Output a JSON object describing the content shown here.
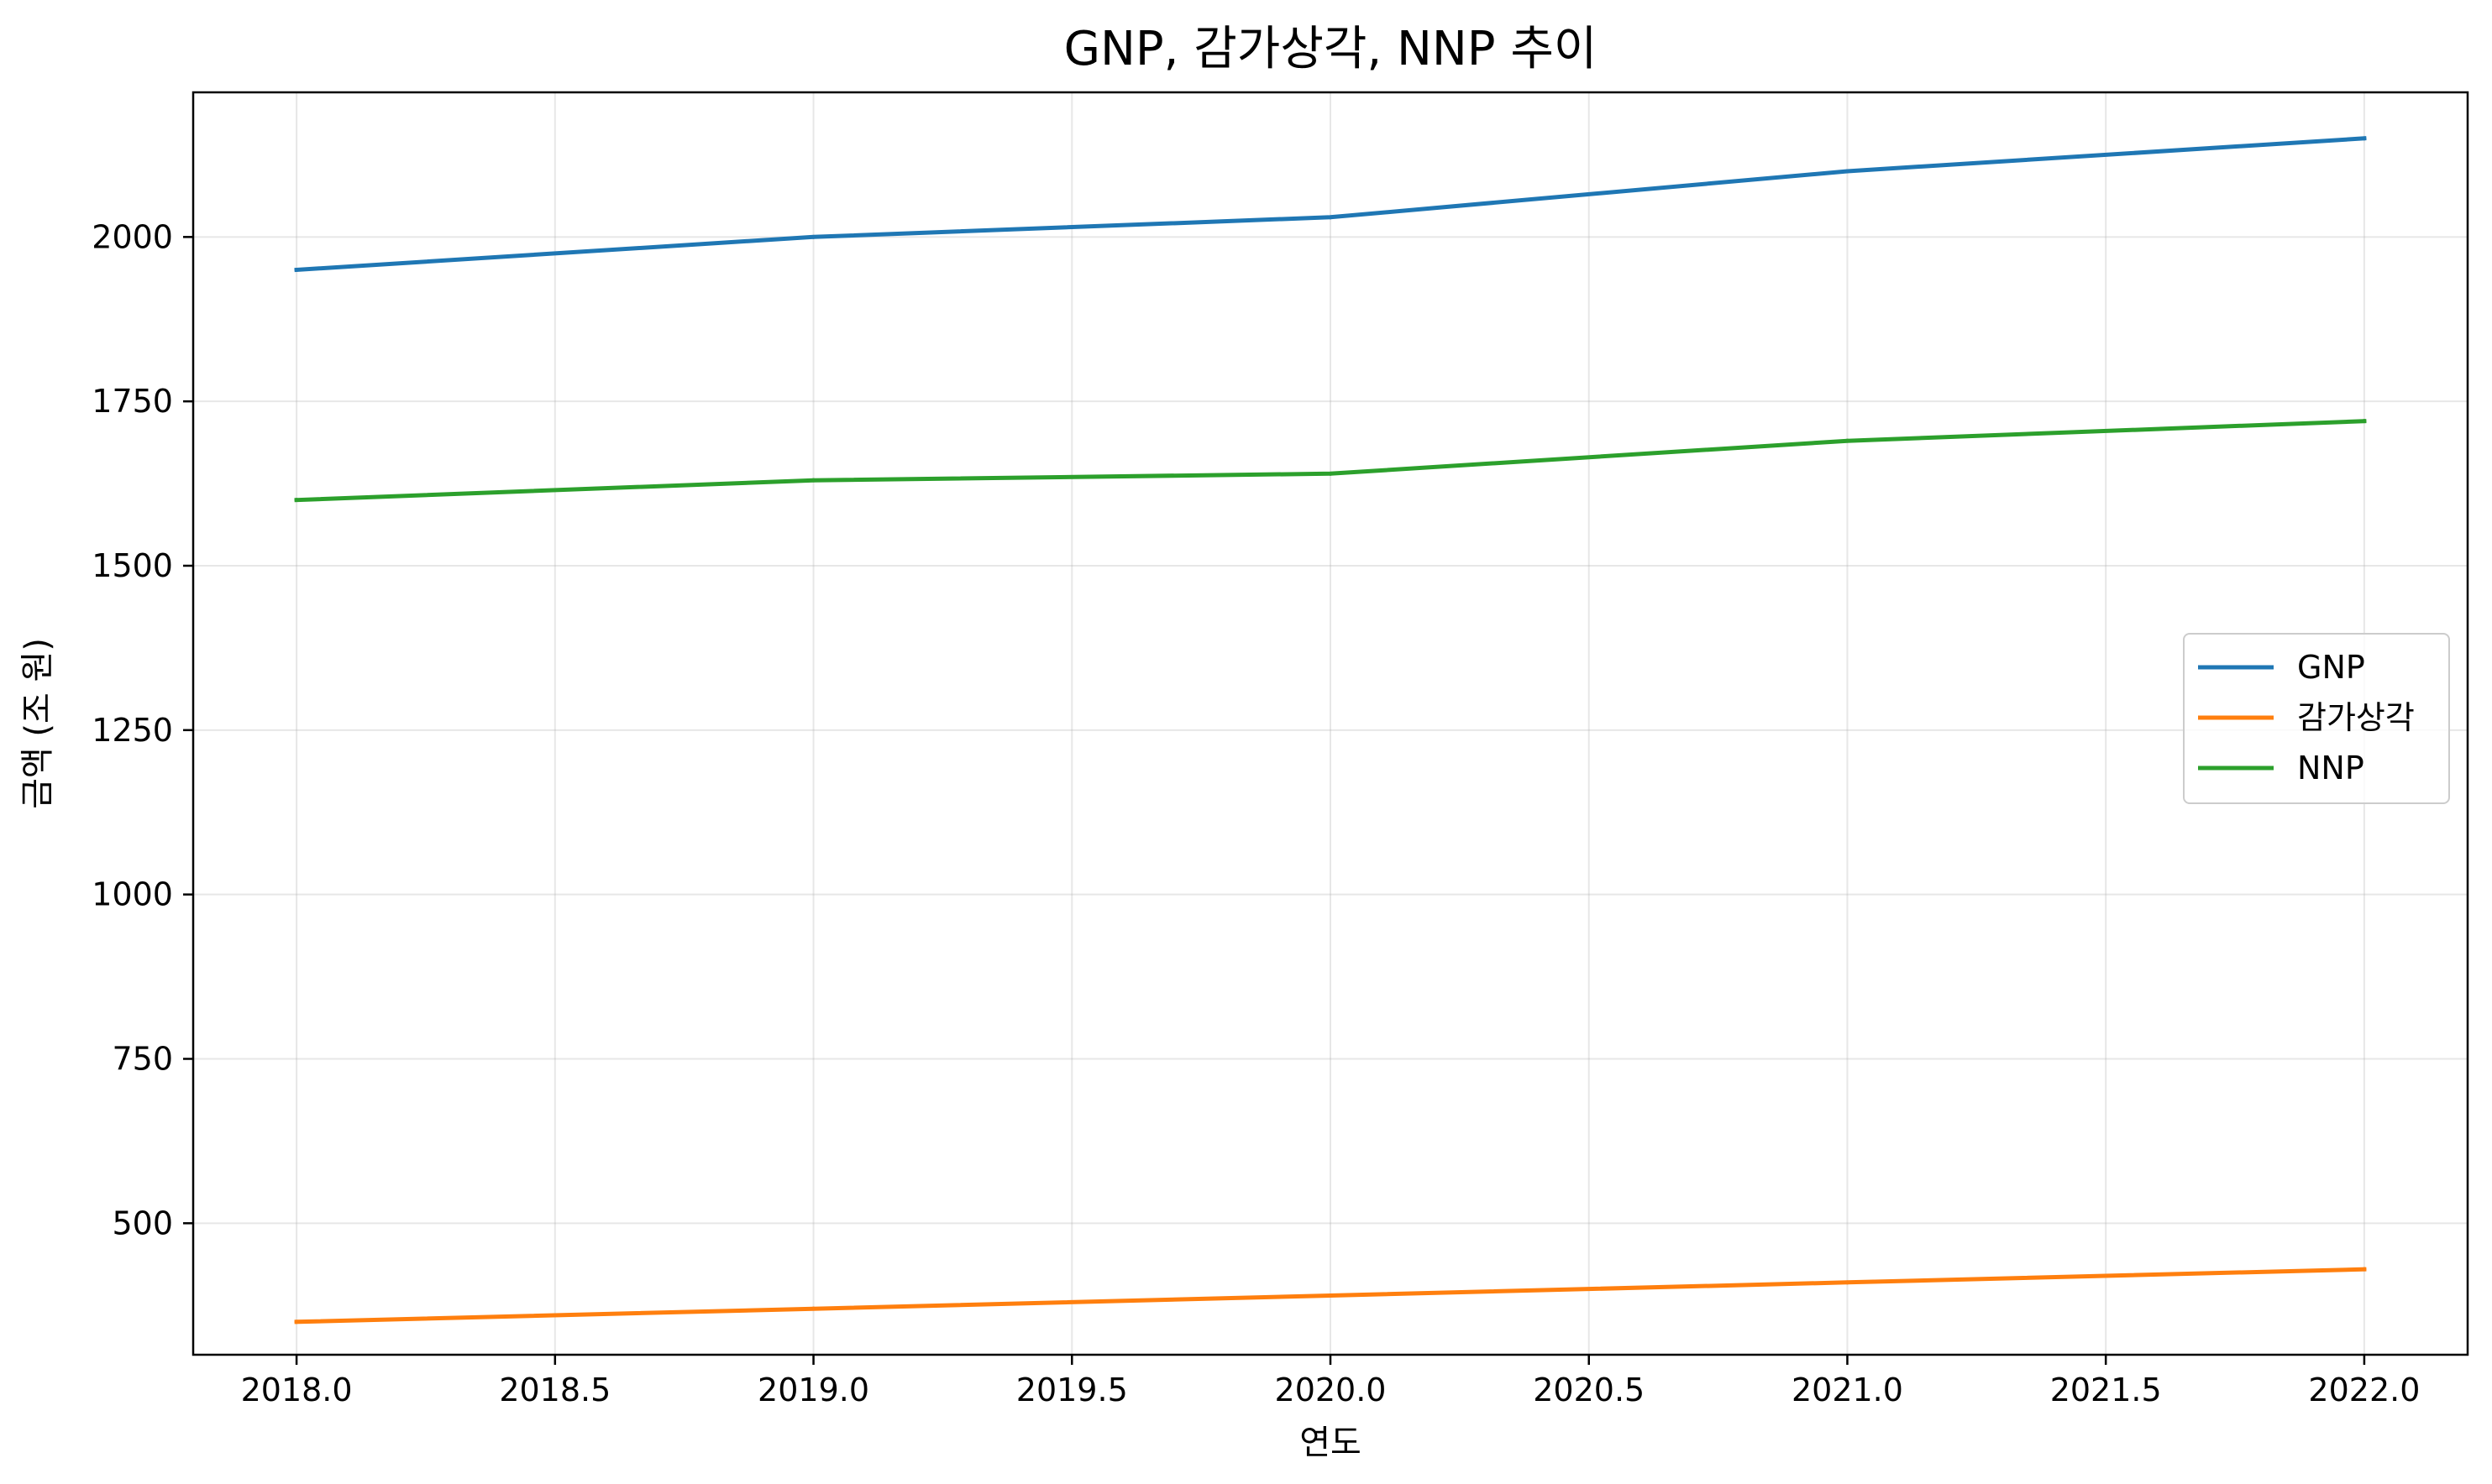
{
  "chart_data": {
    "type": "line",
    "title": "GNP, 감가상각, NNP 추이",
    "xlabel": "연도",
    "ylabel": "금액 (조 원)",
    "x": [
      2018,
      2019,
      2020,
      2021,
      2022
    ],
    "xlim": [
      2017.8,
      2022.2
    ],
    "ylim": [
      300,
      2220
    ],
    "xticks": [
      2018.0,
      2018.5,
      2019.0,
      2019.5,
      2020.0,
      2020.5,
      2021.0,
      2021.5,
      2022.0
    ],
    "xtick_labels": [
      "2018.0",
      "2018.5",
      "2019.0",
      "2019.5",
      "2020.0",
      "2020.5",
      "2021.0",
      "2021.5",
      "2022.0"
    ],
    "yticks": [
      500,
      750,
      1000,
      1250,
      1500,
      1750,
      2000
    ],
    "ytick_labels": [
      "500",
      "750",
      "1000",
      "1250",
      "1500",
      "1750",
      "2000"
    ],
    "grid": true,
    "legend_position": "center-right",
    "series": [
      {
        "name": "GNP",
        "color": "#1f77b4",
        "values": [
          1950,
          2000,
          2030,
          2100,
          2150
        ]
      },
      {
        "name": "감가상각",
        "color": "#ff7f0e",
        "values": [
          350,
          370,
          390,
          410,
          430
        ]
      },
      {
        "name": "NNP",
        "color": "#2ca02c",
        "values": [
          1600,
          1630,
          1640,
          1690,
          1720
        ]
      }
    ]
  }
}
